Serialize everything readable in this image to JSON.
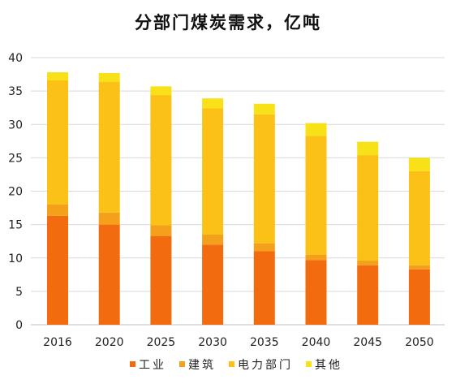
{
  "chart_data": {
    "type": "bar",
    "stacked": true,
    "title": "分部门煤炭需求，亿吨",
    "xlabel": "",
    "ylabel": "",
    "categories": [
      "2016",
      "2020",
      "2025",
      "2030",
      "2035",
      "2040",
      "2045",
      "2050"
    ],
    "ylim": [
      0,
      40
    ],
    "yticks": [
      0,
      5,
      10,
      15,
      20,
      25,
      30,
      35,
      40
    ],
    "grid": true,
    "legend_position": "bottom",
    "series": [
      {
        "name": "工业",
        "color": "#f26b0f",
        "values": [
          16.3,
          15.0,
          13.3,
          12.0,
          11.0,
          9.7,
          8.9,
          8.3
        ]
      },
      {
        "name": "建筑",
        "color": "#f5a01a",
        "values": [
          1.7,
          1.8,
          1.6,
          1.5,
          1.2,
          0.8,
          0.7,
          0.6
        ]
      },
      {
        "name": "电力部门",
        "color": "#fbc116",
        "values": [
          18.6,
          19.6,
          19.5,
          18.9,
          19.3,
          17.8,
          15.8,
          14.1
        ]
      },
      {
        "name": "其他",
        "color": "#f8e217",
        "values": [
          1.2,
          1.3,
          1.3,
          1.5,
          1.6,
          1.9,
          2.0,
          2.0
        ]
      }
    ]
  }
}
